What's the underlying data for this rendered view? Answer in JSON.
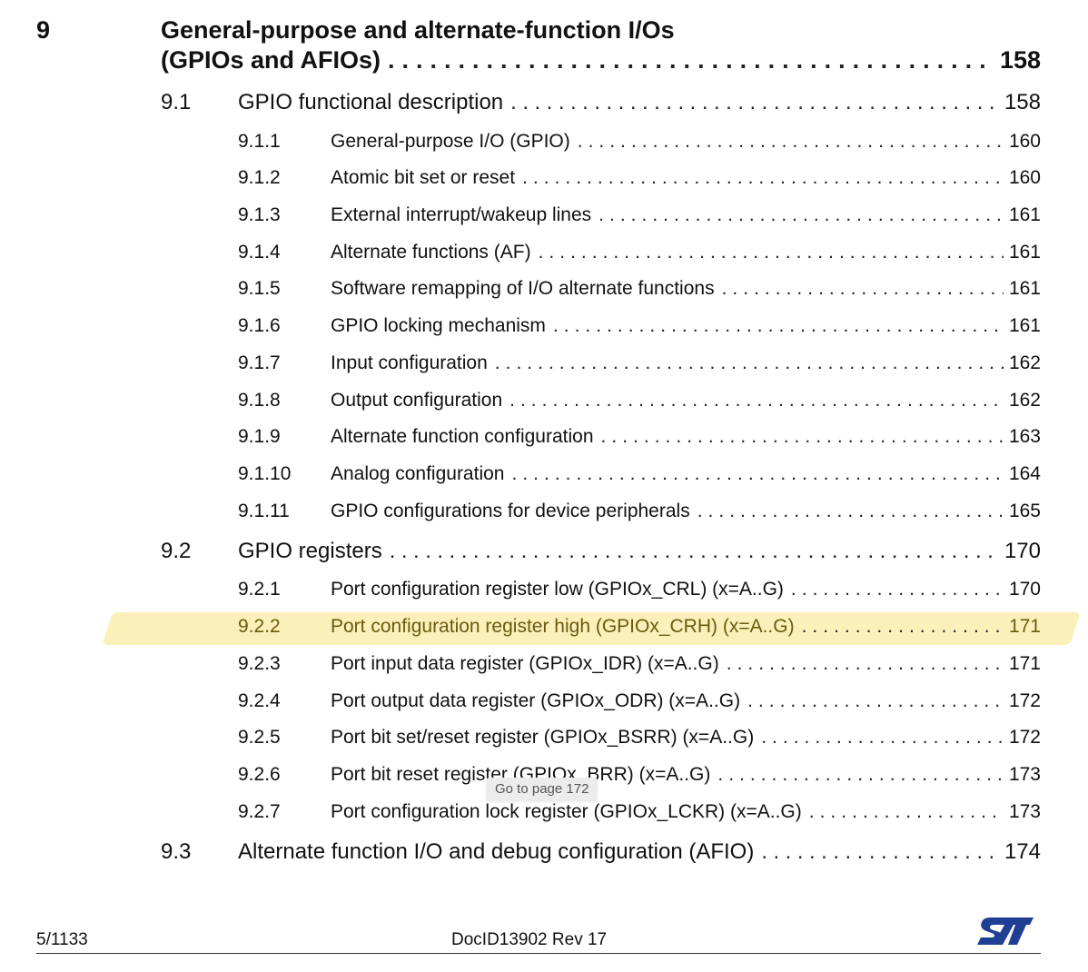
{
  "chapter": {
    "number": "9",
    "title_line1": "General-purpose and alternate-function I/Os",
    "title_line2": "(GPIOs and AFIOs)",
    "page": "158"
  },
  "sections": [
    {
      "num": "9.1",
      "title": "GPIO functional description",
      "page": "158"
    },
    {
      "num": "9.2",
      "title": "GPIO registers",
      "page": "170"
    },
    {
      "num": "9.3",
      "title": "Alternate function I/O and debug configuration (AFIO)",
      "page": "174"
    }
  ],
  "subsections_9_1": [
    {
      "num": "9.1.1",
      "title": "General-purpose I/O (GPIO)",
      "page": "160"
    },
    {
      "num": "9.1.2",
      "title": "Atomic bit set or reset",
      "page": "160"
    },
    {
      "num": "9.1.3",
      "title": "External interrupt/wakeup lines",
      "page": "161"
    },
    {
      "num": "9.1.4",
      "title": "Alternate functions (AF)",
      "page": "161"
    },
    {
      "num": "9.1.5",
      "title": "Software remapping of I/O alternate functions",
      "page": "161"
    },
    {
      "num": "9.1.6",
      "title": "GPIO locking mechanism",
      "page": "161"
    },
    {
      "num": "9.1.7",
      "title": "Input configuration",
      "page": "162"
    },
    {
      "num": "9.1.8",
      "title": "Output configuration",
      "page": "162"
    },
    {
      "num": "9.1.9",
      "title": "Alternate function configuration",
      "page": "163"
    },
    {
      "num": "9.1.10",
      "title": "Analog configuration",
      "page": "164"
    },
    {
      "num": "9.1.11",
      "title": "GPIO configurations for device peripherals",
      "page": "165"
    }
  ],
  "subsections_9_2": [
    {
      "num": "9.2.1",
      "title": "Port configuration register low (GPIOx_CRL) (x=A..G)",
      "page": "170"
    },
    {
      "num": "9.2.2",
      "title": "Port configuration register high (GPIOx_CRH) (x=A..G)",
      "page": "171"
    },
    {
      "num": "9.2.3",
      "title": "Port input data register (GPIOx_IDR) (x=A..G)",
      "page": "171"
    },
    {
      "num": "9.2.4",
      "title": "Port output data register (GPIOx_ODR) (x=A..G)",
      "page": "172"
    },
    {
      "num": "9.2.5",
      "title": "Port bit set/reset register (GPIOx_BSRR) (x=A..G)",
      "page": "172"
    },
    {
      "num": "9.2.6",
      "title": "Port bit reset register (GPIOx_BRR) (x=A..G)",
      "page": "173"
    },
    {
      "num": "9.2.7",
      "title": "Port configuration lock register (GPIOx_LCKR) (x=A..G)",
      "page": "173"
    }
  ],
  "tooltip": "Go to page 172",
  "footer": {
    "page_indicator": "5/1133",
    "doc_id": "DocID13902 Rev 17",
    "logo": "ST"
  },
  "colors": {
    "highlight": "#fbeeb3",
    "logo_blue": "#1f3f95"
  }
}
